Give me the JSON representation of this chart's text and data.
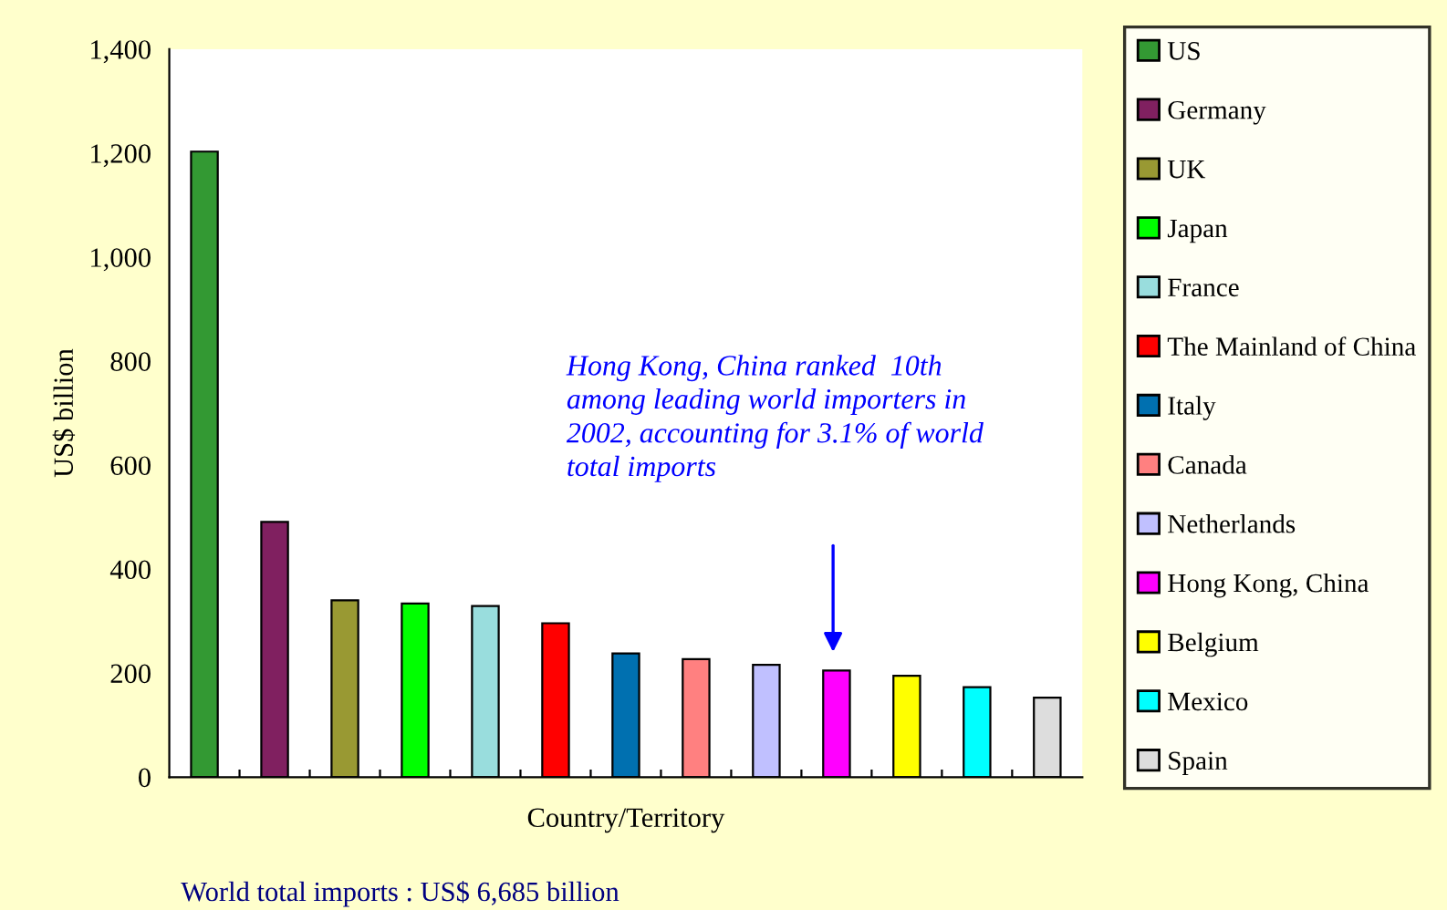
{
  "chart_data": {
    "type": "bar",
    "xlabel": "Country/Territory",
    "ylabel": "US$ billion",
    "categories": [
      null,
      null,
      null,
      null,
      null,
      null,
      null,
      null,
      null,
      null,
      null,
      null,
      null
    ],
    "series": [
      {
        "name": "US",
        "color": "#339933",
        "values": [
          1203,
          null,
          null,
          null,
          null,
          null,
          null,
          null,
          null,
          null,
          null,
          null,
          null
        ]
      },
      {
        "name": "Germany",
        "color": "#802060",
        "values": [
          null,
          491,
          null,
          null,
          null,
          null,
          null,
          null,
          null,
          null,
          null,
          null,
          null
        ]
      },
      {
        "name": "UK",
        "color": "#999933",
        "values": [
          null,
          null,
          340,
          null,
          null,
          null,
          null,
          null,
          null,
          null,
          null,
          null,
          null
        ]
      },
      {
        "name": "Japan",
        "color": "#00ff00",
        "values": [
          null,
          null,
          null,
          334,
          null,
          null,
          null,
          null,
          null,
          null,
          null,
          null,
          null
        ]
      },
      {
        "name": "France",
        "color": "#99dddd",
        "values": [
          null,
          null,
          null,
          null,
          329,
          null,
          null,
          null,
          null,
          null,
          null,
          null,
          null
        ]
      },
      {
        "name": "The Mainland of China",
        "color": "#ff0000",
        "values": [
          null,
          null,
          null,
          null,
          null,
          296,
          null,
          null,
          null,
          null,
          null,
          null,
          null
        ]
      },
      {
        "name": "Italy",
        "color": "#0070b0",
        "values": [
          null,
          null,
          null,
          null,
          null,
          null,
          238,
          null,
          null,
          null,
          null,
          null,
          null
        ]
      },
      {
        "name": "Canada",
        "color": "#ff8080",
        "values": [
          null,
          null,
          null,
          null,
          null,
          null,
          null,
          227,
          null,
          null,
          null,
          null,
          null
        ]
      },
      {
        "name": "Netherlands",
        "color": "#c0c0ff",
        "values": [
          null,
          null,
          null,
          null,
          null,
          null,
          null,
          null,
          216,
          null,
          null,
          null,
          null
        ]
      },
      {
        "name": "Hong Kong, China",
        "color": "#ff00ff",
        "values": [
          null,
          null,
          null,
          null,
          null,
          null,
          null,
          null,
          null,
          205,
          null,
          null,
          null
        ]
      },
      {
        "name": "Belgium",
        "color": "#ffff00",
        "values": [
          null,
          null,
          null,
          null,
          null,
          null,
          null,
          null,
          null,
          null,
          195,
          null,
          null
        ]
      },
      {
        "name": "Mexico",
        "color": "#00ffff",
        "values": [
          null,
          null,
          null,
          null,
          null,
          null,
          null,
          null,
          null,
          null,
          null,
          173,
          null
        ]
      },
      {
        "name": "Spain",
        "color": "#dddddd",
        "values": [
          null,
          null,
          null,
          null,
          null,
          null,
          null,
          null,
          null,
          null,
          null,
          null,
          153
        ]
      }
    ],
    "ylim": [
      0,
      1400
    ],
    "yticks": [
      0,
      {
        "value": 200,
        "label": "200"
      },
      {
        "value": 400,
        "label": "400"
      },
      {
        "value": 600,
        "label": "600"
      },
      {
        "value": 800,
        "label": "800"
      },
      {
        "value": 1000,
        "label": "1,000"
      },
      {
        "value": 1200,
        "label": "1,200"
      },
      {
        "value": 1400,
        "label": "1,400"
      }
    ],
    "grid": false,
    "legend": "right",
    "tick_labels": "y",
    "annotations": [
      "Hong Kong, China ranked  10th\namong leading world importers in\n2002, accounting for 3.1% of world\ntotal imports",
      "World total imports : US$ 6,685 billion"
    ]
  }
}
